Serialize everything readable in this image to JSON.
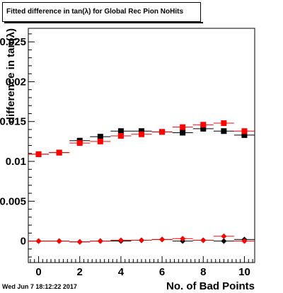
{
  "title": "Fitted difference in tan(λ) for Global Rec Pion NoHits",
  "timestamp": "Wed Jun  7 18:12:22 2017",
  "chart_data": {
    "type": "scatter",
    "xlabel": "No. of Bad Points",
    "ylabel": "difference in tan(λ)",
    "xlim": [
      -0.5,
      10.5
    ],
    "ylim": [
      -0.0027,
      0.0267
    ],
    "x_ticks": [
      0,
      2,
      4,
      6,
      8,
      10
    ],
    "y_ticks": [
      0,
      0.005,
      0.01,
      0.015,
      0.02,
      0.025
    ],
    "y_tick_labels": [
      "0",
      "0.005",
      "0.01",
      "0.015",
      "0.02",
      "0.025"
    ],
    "grid": false,
    "series": [
      {
        "marker": "square",
        "color": "#000000",
        "x": [
          0,
          1,
          2,
          3,
          4,
          5,
          6,
          7,
          8,
          9,
          10
        ],
        "y": [
          0.0109,
          0.0111,
          0.0126,
          0.0131,
          0.0138,
          0.0138,
          0.0137,
          0.0136,
          0.0141,
          0.0138,
          0.0133
        ]
      },
      {
        "marker": "square",
        "color": "#ff0000",
        "x": [
          0,
          1,
          2,
          3,
          4,
          5,
          6,
          7,
          8,
          9,
          10
        ],
        "y": [
          0.0109,
          0.0111,
          0.0123,
          0.0125,
          0.0132,
          0.0134,
          0.0137,
          0.0143,
          0.0146,
          0.0148,
          0.0138
        ]
      },
      {
        "marker": "diamond",
        "color": "#000000",
        "x": [
          0,
          1,
          2,
          3,
          4,
          5,
          6,
          7,
          8,
          9,
          10
        ],
        "y": [
          0.0,
          0.0,
          -0.0001,
          0.0,
          0.0,
          0.0001,
          0.0002,
          0.0,
          0.0001,
          0.0,
          0.0002
        ]
      },
      {
        "marker": "diamond",
        "color": "#ff0000",
        "x": [
          0,
          1,
          2,
          3,
          4,
          5,
          6,
          7,
          8,
          9,
          10
        ],
        "y": [
          0.0,
          0.0,
          -0.0001,
          0.0,
          0.0001,
          0.0001,
          0.0002,
          0.0003,
          0.0001,
          0.0006,
          0.0
        ]
      }
    ]
  }
}
